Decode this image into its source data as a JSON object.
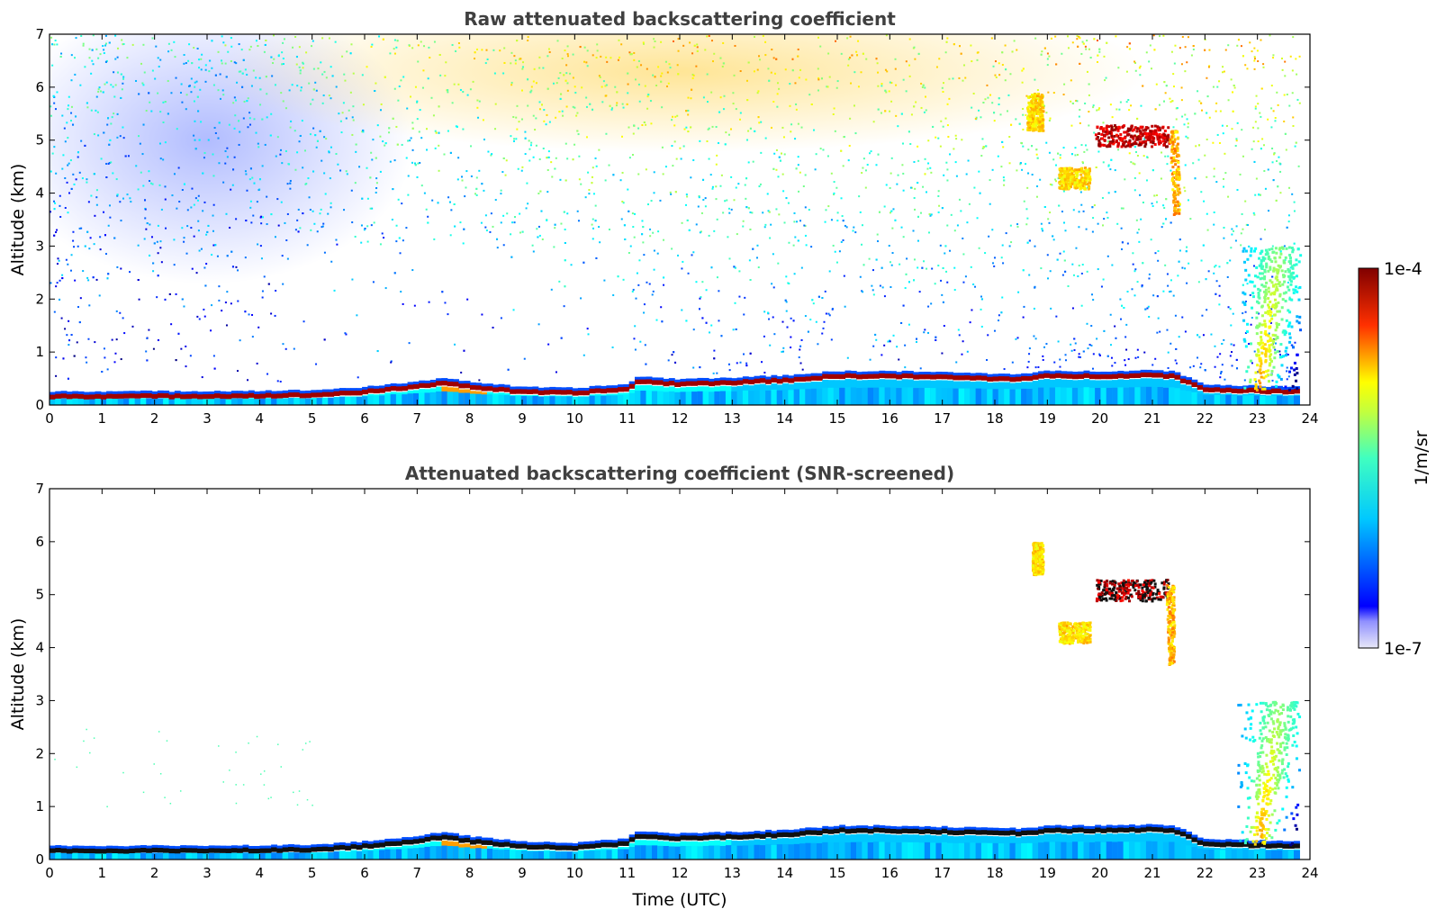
{
  "chart_data": [
    {
      "type": "heatmap",
      "title": "Raw attenuated backscattering coefficient",
      "xlabel": "",
      "ylabel": "Altitude (km)",
      "xlim": [
        0,
        24
      ],
      "ylim": [
        0,
        7
      ],
      "xticks": [
        "0",
        "1",
        "2",
        "3",
        "4",
        "5",
        "6",
        "7",
        "8",
        "9",
        "10",
        "11",
        "12",
        "13",
        "14",
        "15",
        "16",
        "17",
        "18",
        "19",
        "20",
        "21",
        "22",
        "23",
        "24"
      ],
      "yticks": [
        "0",
        "1",
        "2",
        "3",
        "4",
        "5",
        "6",
        "7"
      ],
      "boundary_layer_top_km": {
        "time_utc": [
          0,
          2,
          4,
          5,
          6,
          7,
          7.5,
          8,
          9,
          10,
          10.5,
          11,
          11.2,
          12,
          13,
          14,
          15,
          16,
          17,
          18,
          18.6,
          19,
          20,
          21,
          21.4,
          22,
          23,
          23.8
        ],
        "altitude_km": [
          0.22,
          0.22,
          0.23,
          0.24,
          0.3,
          0.4,
          0.48,
          0.4,
          0.3,
          0.28,
          0.32,
          0.35,
          0.5,
          0.45,
          0.48,
          0.52,
          0.6,
          0.6,
          0.58,
          0.55,
          0.55,
          0.6,
          0.6,
          0.62,
          0.6,
          0.35,
          0.32,
          0.3
        ]
      },
      "features": [
        {
          "type": "cloud",
          "time_utc": [
            19.9,
            21.3
          ],
          "altitude_km": [
            4.9,
            5.3
          ],
          "intensity": "high"
        },
        {
          "type": "cloud",
          "time_utc": [
            18.6,
            18.9
          ],
          "altitude_km": [
            5.2,
            5.9
          ],
          "intensity": "moderate"
        },
        {
          "type": "cloud",
          "time_utc": [
            19.2,
            19.8
          ],
          "altitude_km": [
            4.1,
            4.5
          ],
          "intensity": "moderate"
        },
        {
          "type": "virga",
          "time_utc": [
            21.2,
            21.5
          ],
          "altitude_km": [
            3.6,
            5.2
          ],
          "intensity": "moderate"
        },
        {
          "type": "plume",
          "time_utc": [
            22.7,
            23.8
          ],
          "altitude_km": [
            0.3,
            3.0
          ],
          "intensity": "moderate"
        }
      ]
    },
    {
      "type": "heatmap",
      "title": "Attenuated backscattering coefficient (SNR-screened)",
      "xlabel": "Time (UTC)",
      "ylabel": "Altitude (km)",
      "xlim": [
        0,
        24
      ],
      "ylim": [
        0,
        7
      ],
      "xticks": [
        "0",
        "1",
        "2",
        "3",
        "4",
        "5",
        "6",
        "7",
        "8",
        "9",
        "10",
        "11",
        "12",
        "13",
        "14",
        "15",
        "16",
        "17",
        "18",
        "19",
        "20",
        "21",
        "22",
        "23",
        "24"
      ],
      "yticks": [
        "0",
        "1",
        "2",
        "3",
        "4",
        "5",
        "6",
        "7"
      ],
      "features": [
        {
          "type": "cloud",
          "time_utc": [
            19.9,
            21.3
          ],
          "altitude_km": [
            4.9,
            5.3
          ],
          "intensity": "high"
        },
        {
          "type": "cloud",
          "time_utc": [
            18.7,
            18.9
          ],
          "altitude_km": [
            5.4,
            6.0
          ],
          "intensity": "moderate"
        },
        {
          "type": "cloud",
          "time_utc": [
            19.2,
            19.8
          ],
          "altitude_km": [
            4.1,
            4.5
          ],
          "intensity": "moderate"
        },
        {
          "type": "virga",
          "time_utc": [
            21.2,
            21.4
          ],
          "altitude_km": [
            3.7,
            5.2
          ],
          "intensity": "moderate"
        },
        {
          "type": "plume",
          "time_utc": [
            22.6,
            23.8
          ],
          "altitude_km": [
            0.3,
            3.0
          ],
          "intensity": "moderate"
        }
      ]
    }
  ],
  "colorbar": {
    "label": "1/m/sr",
    "min_label": "1e-7",
    "max_label": "1e-4",
    "min": 1e-07,
    "max": 0.0001,
    "scale": "log",
    "colormap": "jet",
    "colors": [
      "#e6e6fa",
      "#0000ff",
      "#00ffff",
      "#ffff00",
      "#ff0000",
      "#7f0000"
    ]
  }
}
